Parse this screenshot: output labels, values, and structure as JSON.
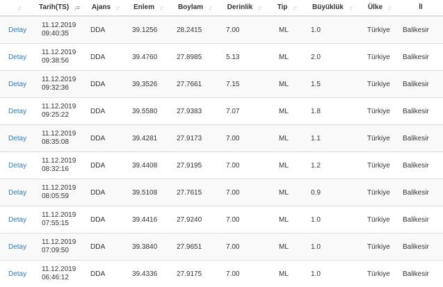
{
  "table": {
    "headers": {
      "detail": "",
      "date": "Tarih(TS)",
      "agency": "Ajans",
      "lat": "Enlem",
      "lon": "Boylam",
      "depth": "Derinlik",
      "type": "Tip",
      "mag": "Büyüklük",
      "country": "Ülke",
      "city": "İl"
    },
    "sort_column": "date",
    "sort_direction": "descending",
    "rows": [
      {
        "detail": "Detay",
        "date": "11.12.2019",
        "time": "09:40:35",
        "agency": "DDA",
        "lat": "39.1256",
        "lon": "28.2415",
        "depth": "7.00",
        "type": "ML",
        "mag": "1.0",
        "country": "Türkiye",
        "city": "Balikesir"
      },
      {
        "detail": "Detay",
        "date": "11.12.2019",
        "time": "09:38:56",
        "agency": "DDA",
        "lat": "39.4760",
        "lon": "27.8985",
        "depth": "5.13",
        "type": "ML",
        "mag": "2.0",
        "country": "Türkiye",
        "city": "Balikesir"
      },
      {
        "detail": "Detay",
        "date": "11.12.2019",
        "time": "09:32:36",
        "agency": "DDA",
        "lat": "39.3526",
        "lon": "27.7661",
        "depth": "7.15",
        "type": "ML",
        "mag": "1.5",
        "country": "Türkiye",
        "city": "Balikesir"
      },
      {
        "detail": "Detay",
        "date": "11.12.2019",
        "time": "09:25:22",
        "agency": "DDA",
        "lat": "39.5580",
        "lon": "27.9383",
        "depth": "7.07",
        "type": "ML",
        "mag": "1.8",
        "country": "Türkiye",
        "city": "Balikesir"
      },
      {
        "detail": "Detay",
        "date": "11.12.2019",
        "time": "08:35:08",
        "agency": "DDA",
        "lat": "39.4281",
        "lon": "27.9173",
        "depth": "7.00",
        "type": "ML",
        "mag": "1.1",
        "country": "Türkiye",
        "city": "Balikesir"
      },
      {
        "detail": "Detay",
        "date": "11.12.2019",
        "time": "08:32:16",
        "agency": "DDA",
        "lat": "39.4408",
        "lon": "27.9195",
        "depth": "7.00",
        "type": "ML",
        "mag": "1.2",
        "country": "Türkiye",
        "city": "Balikesir"
      },
      {
        "detail": "Detay",
        "date": "11.12.2019",
        "time": "08:05:59",
        "agency": "DDA",
        "lat": "39.5108",
        "lon": "27.7615",
        "depth": "7.00",
        "type": "ML",
        "mag": "0.9",
        "country": "Türkiye",
        "city": "Balikesir"
      },
      {
        "detail": "Detay",
        "date": "11.12.2019",
        "time": "07:55:15",
        "agency": "DDA",
        "lat": "39.4416",
        "lon": "27.9240",
        "depth": "7.00",
        "type": "ML",
        "mag": "1.0",
        "country": "Türkiye",
        "city": "Balikesir"
      },
      {
        "detail": "Detay",
        "date": "11.12.2019",
        "time": "07:09:50",
        "agency": "DDA",
        "lat": "39.3840",
        "lon": "27.9651",
        "depth": "7.00",
        "type": "ML",
        "mag": "1.0",
        "country": "Türkiye",
        "city": "Balikesir"
      },
      {
        "detail": "Detay",
        "date": "11.12.2019",
        "time": "06:46:12",
        "agency": "DDA",
        "lat": "39.4336",
        "lon": "27.9175",
        "depth": "7.00",
        "type": "ML",
        "mag": "1.0",
        "country": "Türkiye",
        "city": "Balikesir"
      }
    ]
  }
}
